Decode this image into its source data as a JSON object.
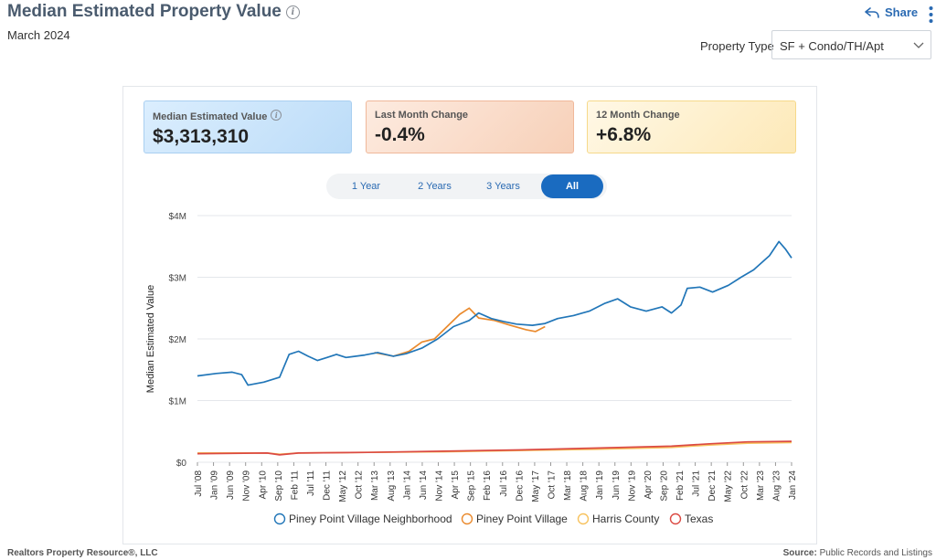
{
  "header": {
    "title": "Median Estimated Property Value",
    "subtitle": "March 2024",
    "share_label": "Share"
  },
  "filter": {
    "label": "Property Type",
    "selected": "SF + Condo/TH/Apt"
  },
  "cards": [
    {
      "label": "Median Estimated Value",
      "value": "$3,313,310"
    },
    {
      "label": "Last Month Change",
      "value": "-0.4%"
    },
    {
      "label": "12 Month Change",
      "value": "+6.8%"
    }
  ],
  "tabs": [
    "1 Year",
    "2 Years",
    "3 Years",
    "All"
  ],
  "active_tab": "All",
  "footer": {
    "left": "Realtors Property Resource®, LLC",
    "right_label": "Source:",
    "right_value": "Public Records and Listings"
  },
  "chart_data": {
    "type": "line",
    "xlabel": "",
    "ylabel": "Median Estimated Value",
    "ylim": [
      0,
      4000000
    ],
    "x_range": [
      "2008-07",
      "2024-03"
    ],
    "y_ticks": [
      {
        "value": 0,
        "label": "$0"
      },
      {
        "value": 1000000,
        "label": "$1M"
      },
      {
        "value": 2000000,
        "label": "$2M"
      },
      {
        "value": 3000000,
        "label": "$3M"
      },
      {
        "value": 4000000,
        "label": "$4M"
      }
    ],
    "x_ticks": [
      "Jul '08",
      "Jan '09",
      "Jun '09",
      "Nov '09",
      "Apr '10",
      "Sep '10",
      "Feb '11",
      "Jul '11",
      "Dec '11",
      "May '12",
      "Oct '12",
      "Mar '13",
      "Aug '13",
      "Jan '14",
      "Jun '14",
      "Nov '14",
      "Apr '15",
      "Sep '15",
      "Feb '16",
      "Jul '16",
      "Dec '16",
      "May '17",
      "Oct '17",
      "Mar '18",
      "Aug '18",
      "Jan '19",
      "Jun '19",
      "Nov '19",
      "Apr '20",
      "Sep '20",
      "Feb '21",
      "Jul '21",
      "Dec '21",
      "May '22",
      "Oct '22",
      "Mar '23",
      "Aug '23",
      "Jan '24"
    ],
    "grid": true,
    "legend_position": "bottom",
    "series": [
      {
        "name": "Piney Point Village Neighborhood",
        "color": "#2176b8",
        "points": [
          [
            "2008-07",
            1400000
          ],
          [
            "2009-01",
            1440000
          ],
          [
            "2009-06",
            1460000
          ],
          [
            "2009-09",
            1420000
          ],
          [
            "2009-11",
            1250000
          ],
          [
            "2010-04",
            1300000
          ],
          [
            "2010-09",
            1380000
          ],
          [
            "2010-12",
            1750000
          ],
          [
            "2011-03",
            1800000
          ],
          [
            "2011-06",
            1720000
          ],
          [
            "2011-09",
            1650000
          ],
          [
            "2011-12",
            1700000
          ],
          [
            "2012-03",
            1750000
          ],
          [
            "2012-06",
            1700000
          ],
          [
            "2012-12",
            1740000
          ],
          [
            "2013-04",
            1780000
          ],
          [
            "2013-09",
            1720000
          ],
          [
            "2014-01",
            1760000
          ],
          [
            "2014-06",
            1850000
          ],
          [
            "2014-11",
            2000000
          ],
          [
            "2015-04",
            2200000
          ],
          [
            "2015-09",
            2300000
          ],
          [
            "2015-12",
            2420000
          ],
          [
            "2016-04",
            2330000
          ],
          [
            "2016-08",
            2280000
          ],
          [
            "2016-12",
            2240000
          ],
          [
            "2017-05",
            2220000
          ],
          [
            "2017-09",
            2250000
          ],
          [
            "2018-01",
            2330000
          ],
          [
            "2018-06",
            2380000
          ],
          [
            "2018-11",
            2450000
          ],
          [
            "2019-04",
            2580000
          ],
          [
            "2019-08",
            2650000
          ],
          [
            "2019-12",
            2520000
          ],
          [
            "2020-05",
            2450000
          ],
          [
            "2020-10",
            2520000
          ],
          [
            "2021-01",
            2420000
          ],
          [
            "2021-04",
            2550000
          ],
          [
            "2021-06",
            2820000
          ],
          [
            "2021-10",
            2840000
          ],
          [
            "2022-02",
            2760000
          ],
          [
            "2022-07",
            2870000
          ],
          [
            "2022-11",
            3000000
          ],
          [
            "2023-03",
            3120000
          ],
          [
            "2023-08",
            3350000
          ],
          [
            "2023-11",
            3580000
          ],
          [
            "2024-01",
            3460000
          ],
          [
            "2024-03",
            3313310
          ]
        ]
      },
      {
        "name": "Piney Point Village",
        "color": "#ea8a2d",
        "points": [
          [
            "2013-03",
            1780000
          ],
          [
            "2013-09",
            1720000
          ],
          [
            "2014-02",
            1800000
          ],
          [
            "2014-06",
            1950000
          ],
          [
            "2014-10",
            2000000
          ],
          [
            "2015-02",
            2200000
          ],
          [
            "2015-06",
            2400000
          ],
          [
            "2015-09",
            2500000
          ],
          [
            "2015-12",
            2340000
          ],
          [
            "2016-05",
            2300000
          ],
          [
            "2016-10",
            2220000
          ],
          [
            "2017-03",
            2150000
          ],
          [
            "2017-06",
            2120000
          ],
          [
            "2017-09",
            2200000
          ]
        ]
      },
      {
        "name": "Harris County",
        "color": "#f7c25e",
        "points": [
          [
            "2008-07",
            150000
          ],
          [
            "2010-05",
            150000
          ],
          [
            "2010-09",
            130000
          ],
          [
            "2011-03",
            150000
          ],
          [
            "2013-01",
            160000
          ],
          [
            "2015-01",
            170000
          ],
          [
            "2017-01",
            190000
          ],
          [
            "2019-01",
            210000
          ],
          [
            "2021-01",
            240000
          ],
          [
            "2022-01",
            280000
          ],
          [
            "2023-01",
            310000
          ],
          [
            "2024-03",
            320000
          ]
        ]
      },
      {
        "name": "Texas",
        "color": "#db4a43",
        "points": [
          [
            "2008-07",
            140000
          ],
          [
            "2010-05",
            150000
          ],
          [
            "2010-09",
            120000
          ],
          [
            "2011-03",
            150000
          ],
          [
            "2013-01",
            160000
          ],
          [
            "2015-01",
            180000
          ],
          [
            "2017-01",
            200000
          ],
          [
            "2019-01",
            230000
          ],
          [
            "2021-01",
            260000
          ],
          [
            "2022-01",
            300000
          ],
          [
            "2023-01",
            330000
          ],
          [
            "2024-03",
            340000
          ]
        ]
      }
    ]
  }
}
